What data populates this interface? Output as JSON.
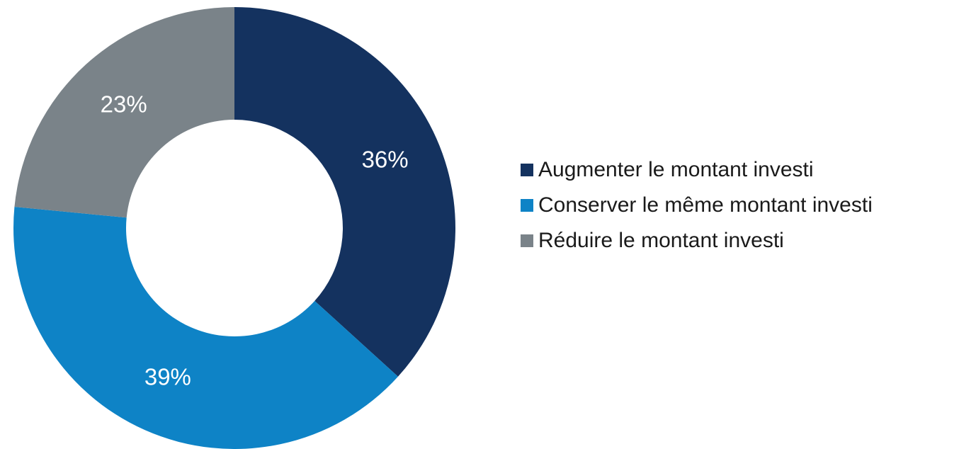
{
  "chart_data": {
    "type": "donut",
    "categories": [
      "Augmenter le montant investi",
      "Conserver le même montant investi",
      "Réduire le montant investi"
    ],
    "values": [
      36,
      39,
      23
    ],
    "value_labels": [
      "36%",
      "39%",
      "23%"
    ],
    "colors": [
      "#14325f",
      "#0e83c6",
      "#7a8389"
    ],
    "legend": "right"
  }
}
